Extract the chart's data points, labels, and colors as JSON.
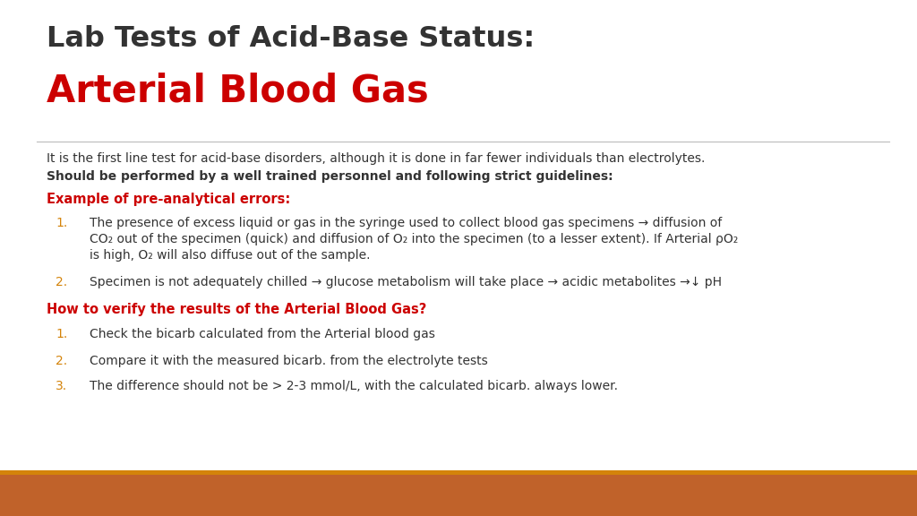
{
  "title_line1": "Lab Tests of Acid-Base Status:",
  "title_line2": "Arterial Blood Gas",
  "title_line1_color": "#333333",
  "title_line2_color": "#cc0000",
  "bg_color": "#ffffff",
  "bar_color_top": "#d4830a",
  "bar_color_main": "#c0622a",
  "separator_color": "#bbbbbb",
  "intro_text": "It is the first line test for acid-base disorders, although it is done in far fewer individuals than electrolytes.",
  "intro_bold": "Should be performed by a well trained personnel and following strict guidelines:",
  "section1_label": "Example of pre-analytical errors:",
  "section1_color": "#cc0000",
  "section2_label": "How to verify the results of the Arterial Blood Gas?",
  "section2_color": "#cc0000",
  "item_number_color": "#d4830a",
  "item1_line1": "The presence of excess liquid or gas in the syringe used to collect blood gas specimens → diffusion of",
  "item1_line2": "CO₂ out of the specimen (quick) and diffusion of O₂ into the specimen (to a lesser extent). If Arterial ρO₂",
  "item1_line3": "is high, O₂ will also diffuse out of the sample.",
  "item2_text": "Specimen is not adequately chilled → glucose metabolism will take place → acidic metabolites →↓ pH",
  "items_section2": [
    "Check the bicarb calculated from the Arterial blood gas",
    "Compare it with the measured bicarb. from the electrolyte tests",
    "The difference should not be > 2-3 mmol/L, with the calculated bicarb. always lower."
  ],
  "text_color": "#333333"
}
